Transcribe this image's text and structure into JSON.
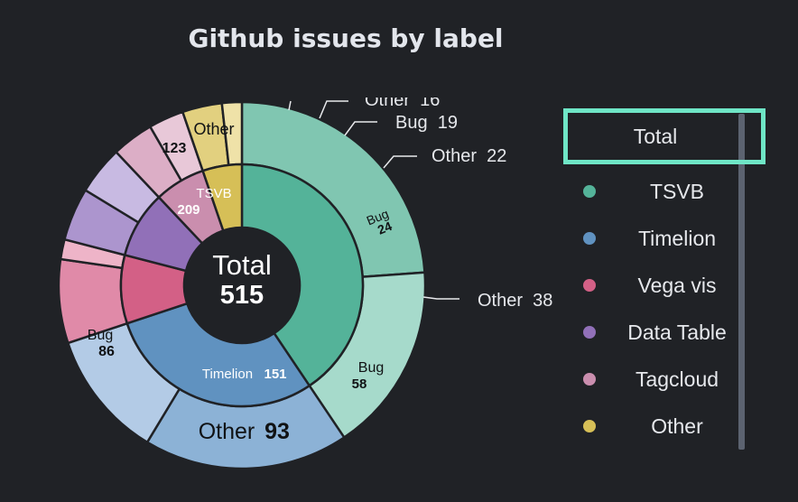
{
  "title": "Github issues by label",
  "center": {
    "label": "Total",
    "value": "515"
  },
  "legend": {
    "total_label": "Total",
    "items": [
      {
        "name": "TSVB",
        "color": "#54b399"
      },
      {
        "name": "Timelion",
        "color": "#6092c0"
      },
      {
        "name": "Vega vis",
        "color": "#d36086"
      },
      {
        "name": "Data Table",
        "color": "#9170b8"
      },
      {
        "name": "Tagcloud",
        "color": "#ca8eae"
      },
      {
        "name": "Other",
        "color": "#d6bf57"
      }
    ]
  },
  "chart_data": {
    "type": "sunburst",
    "title": "Github issues by label",
    "total": 515,
    "inner": [
      {
        "name": "TSVB",
        "value": 209,
        "color": "#54b399",
        "children": [
          {
            "name": "Other",
            "value": 123,
            "color": "#80c6b1"
          },
          {
            "name": "Bug",
            "value": 86,
            "color": "#a6dacb"
          }
        ]
      },
      {
        "name": "Timelion",
        "value": 151,
        "color": "#6092c0",
        "children": [
          {
            "name": "Other",
            "value": 93,
            "color": "#8cb2d6"
          },
          {
            "name": "Bug",
            "value": 58,
            "color": "#b3cbe6"
          }
        ]
      },
      {
        "name": "Vega vis",
        "value": 47,
        "color": "#d36086",
        "children": [
          {
            "name": "Other",
            "value": 38,
            "color": "#e08aa8"
          },
          {
            "name": "Bug",
            "value": 9,
            "color": "#eeb4c8"
          }
        ]
      },
      {
        "name": "Data Table",
        "value": 46,
        "color": "#9170b8",
        "children": [
          {
            "name": "Bug",
            "value": 24,
            "color": "#ac95ce"
          },
          {
            "name": "Other",
            "value": 22,
            "color": "#c8bae2"
          }
        ]
      },
      {
        "name": "Tagcloud",
        "value": 35,
        "color": "#ca8eae",
        "children": [
          {
            "name": "Bug",
            "value": 19,
            "color": "#dcaec6"
          },
          {
            "name": "Other",
            "value": 16,
            "color": "#e8c8d8"
          }
        ]
      },
      {
        "name": "Other",
        "value": 27,
        "color": "#d6bf57",
        "children": [
          {
            "name": "Other",
            "value": 18,
            "color": "#e2d07f"
          },
          {
            "name": "Bug",
            "value": 9,
            "color": "#efe2a8"
          }
        ]
      }
    ],
    "labels": {
      "tsvb_inner": {
        "name": "TSVB",
        "value": "209"
      },
      "timelion_inner": {
        "name": "Timelion",
        "value": "151"
      },
      "tsvb_other": {
        "name": "Other",
        "value": "123"
      },
      "tsvb_bug": {
        "name": "Bug",
        "value": "86"
      },
      "timelion_other": {
        "name": "Other",
        "value": "93"
      },
      "timelion_bug": {
        "name": "Bug",
        "value": "58"
      },
      "datatable_bug": {
        "name": "Bug",
        "value": "24"
      },
      "vega_other": "Other  38",
      "datatable_other": "Other  22",
      "tagcloud_bug": "Bug  19",
      "tagcloud_other": "Other  16"
    }
  }
}
